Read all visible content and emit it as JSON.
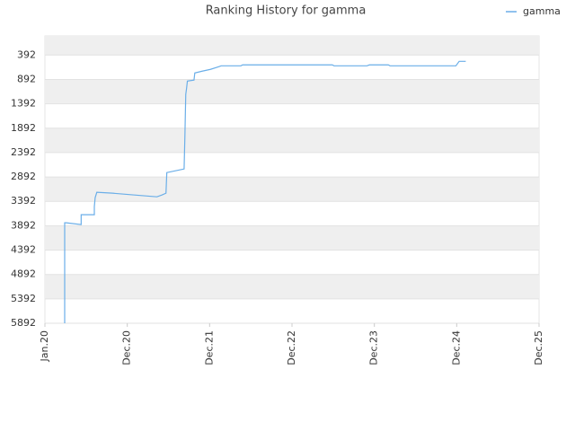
{
  "chart_data": {
    "type": "line",
    "title": "Ranking History for gamma",
    "x": [
      2020.24,
      2020.24,
      2020.26,
      2020.44,
      2020.44,
      2020.6,
      2020.6,
      2020.61,
      2020.63,
      2020.82,
      2021.09,
      2021.36,
      2021.42,
      2021.47,
      2021.48,
      2021.69,
      2021.7,
      2021.71,
      2021.72,
      2021.73,
      2021.81,
      2021.82,
      2021.91,
      2022.01,
      2022.11,
      2022.14,
      2022.38,
      2022.4,
      2023.49,
      2023.51,
      2023.91,
      2023.94,
      2024.17,
      2024.19,
      2024.99,
      2025.03,
      2025.11
    ],
    "series": [
      {
        "name": "gamma",
        "color": "#6aaee8",
        "values": [
          5892,
          3832,
          3832,
          3869,
          3666,
          3666,
          3501,
          3317,
          3207,
          3225,
          3262,
          3299,
          3262,
          3225,
          2802,
          2728,
          2029,
          1201,
          1073,
          925,
          907,
          760,
          723,
          686,
          631,
          613,
          613,
          594,
          594,
          613,
          613,
          594,
          594,
          613,
          613,
          521,
          521
        ]
      }
    ],
    "xlim": [
      2020,
      2026
    ],
    "xticks": [
      {
        "value": 2020,
        "label": "Jan.20"
      },
      {
        "value": 2021,
        "label": "Dec.20"
      },
      {
        "value": 2022,
        "label": "Dec.21"
      },
      {
        "value": 2023,
        "label": "Dec.22"
      },
      {
        "value": 2024,
        "label": "Dec.23"
      },
      {
        "value": 2025,
        "label": "Dec.24"
      },
      {
        "value": 2026,
        "label": "Dec.25"
      }
    ],
    "ylim": [
      5892,
      0
    ],
    "yticks": [
      392,
      892,
      1392,
      1892,
      2392,
      2892,
      3392,
      3892,
      4392,
      4892,
      5392,
      5892
    ],
    "grid": true,
    "legend": "top-right"
  }
}
